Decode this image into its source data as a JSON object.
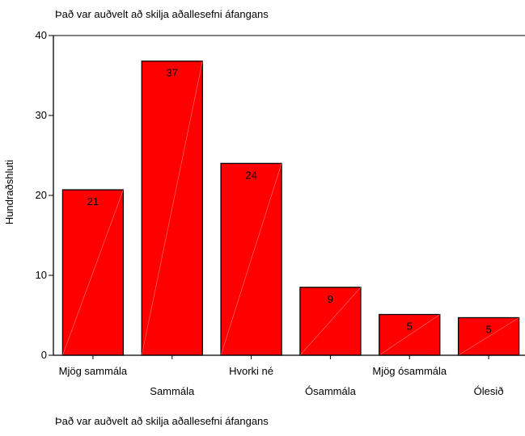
{
  "chart_data": {
    "type": "bar",
    "title": "Það var auðvelt að skilja aðallesefni áfangans",
    "xlabel": "Það var auðvelt að skilja aðallesefni áfangans",
    "ylabel": "Hundraðshluti",
    "categories": [
      "Mjög sammála",
      "Sammála",
      "Hvorki né",
      "Ósammála",
      "Mjög ósammála",
      "Ólesið"
    ],
    "values": [
      20.7,
      36.8,
      24.0,
      8.5,
      5.1,
      4.7
    ],
    "data_labels": [
      "21",
      "37",
      "24",
      "9",
      "5",
      "5"
    ],
    "yticks": [
      0,
      10,
      20,
      30,
      40
    ],
    "ylim": [
      0,
      40
    ],
    "grid": false,
    "legend": "none",
    "bar_color": "#ff0000",
    "bar_edge_color": "#000000"
  }
}
